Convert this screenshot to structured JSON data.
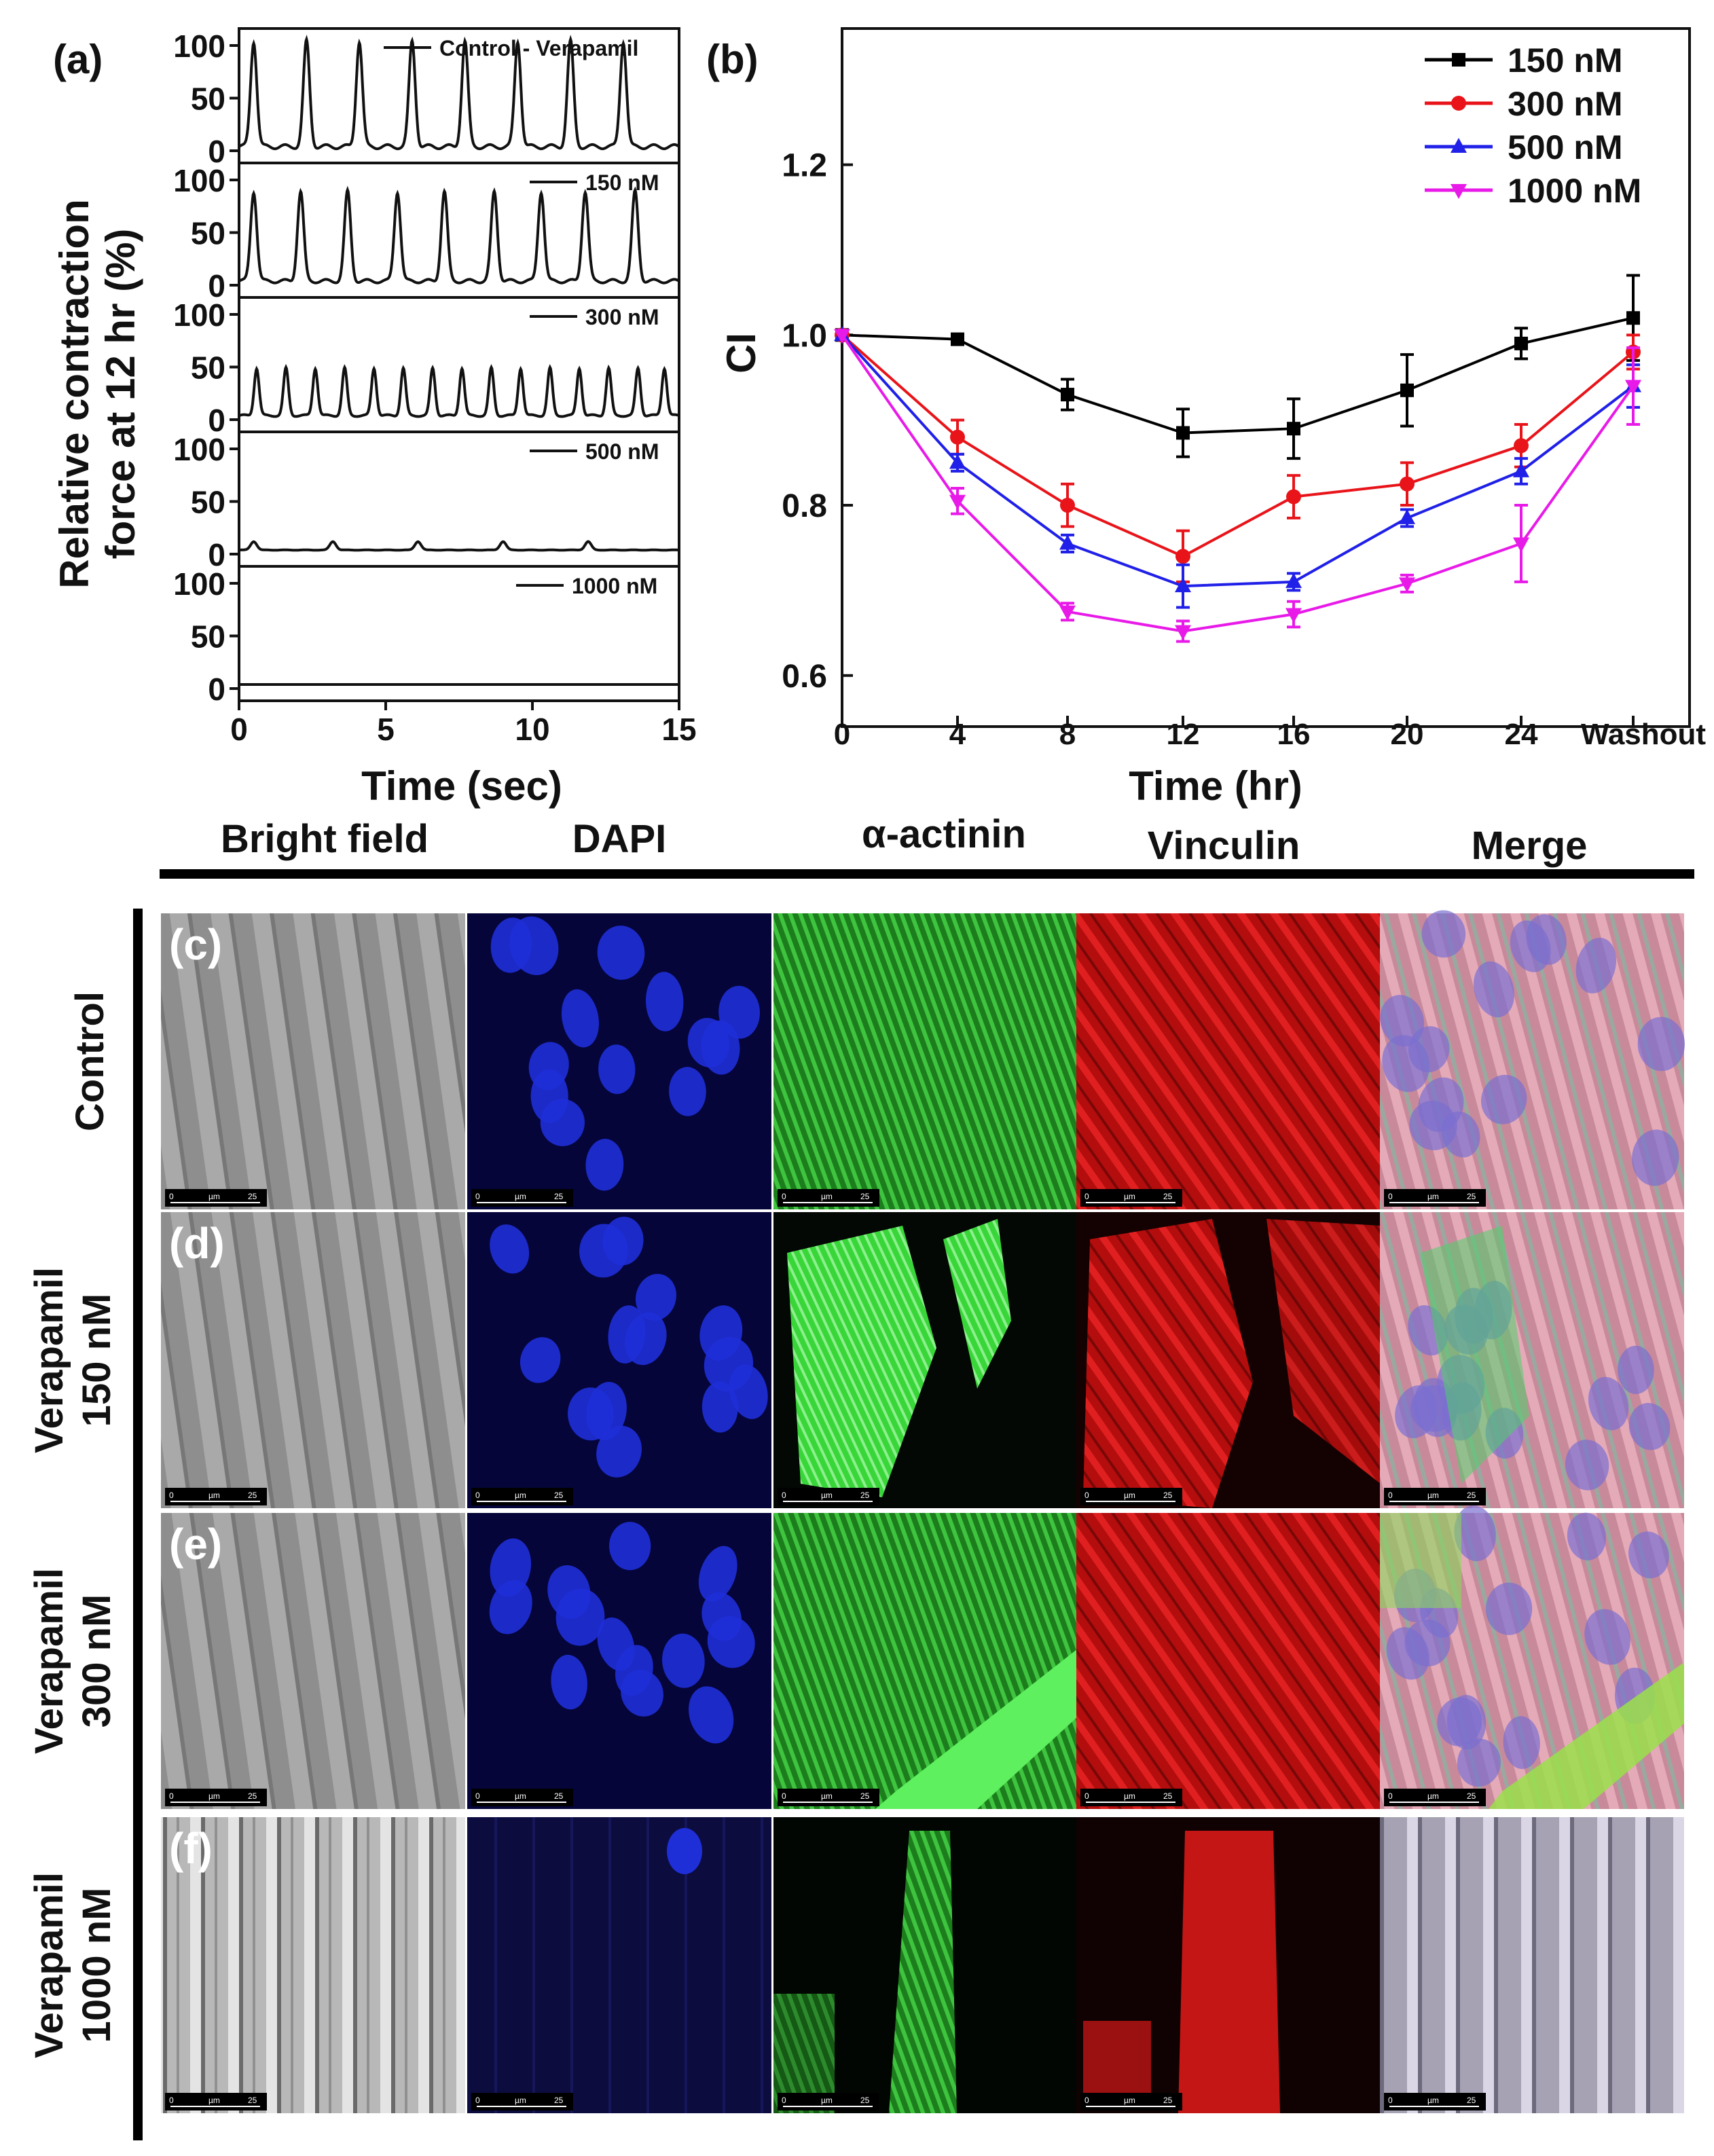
{
  "panel_a": {
    "label": "(a)",
    "ylabel_line1": "Relative contraction",
    "ylabel_line2": "force at 12 hr (%)",
    "xlabel": "Time (sec)",
    "xticks": [
      "0",
      "5",
      "10",
      "15"
    ],
    "strips": [
      {
        "legend": "Control - Verapamil",
        "ticks": [
          "100",
          "50",
          "0"
        ]
      },
      {
        "legend": "150 nM",
        "ticks": [
          "100",
          "50",
          "0"
        ]
      },
      {
        "legend": "300 nM",
        "ticks": [
          "100",
          "50",
          "0"
        ]
      },
      {
        "legend": "500 nM",
        "ticks": [
          "100",
          "50",
          "0"
        ]
      },
      {
        "legend": "1000 nM",
        "ticks": [
          "100",
          "50",
          "0"
        ]
      }
    ]
  },
  "panel_b": {
    "label": "(b)",
    "ylabel": "CI",
    "xlabel": "Time (hr)",
    "xticks": [
      "0",
      "4",
      "8",
      "12",
      "16",
      "20",
      "24",
      "Washout"
    ],
    "yticks": [
      "0.6",
      "0.8",
      "1.0",
      "1.2"
    ]
  },
  "chart_data": [
    {
      "type": "line",
      "panel": "(a)",
      "xlabel": "Time (sec)",
      "ylabel": "Relative contraction force at 12 hr (%)",
      "xlim": [
        0,
        15
      ],
      "ylim": [
        0,
        100
      ],
      "series": [
        {
          "name": "Control - Verapamil",
          "peak_times": [
            0.5,
            2.3,
            4.1,
            5.9,
            7.7,
            9.5,
            11.3,
            13.1
          ],
          "peak_amplitude": 100
        },
        {
          "name": "150 nM",
          "peak_times": [
            0.5,
            2.1,
            3.7,
            5.4,
            7.0,
            8.7,
            10.3,
            11.8,
            13.5
          ],
          "peak_amplitude": 85
        },
        {
          "name": "300 nM",
          "peak_times": [
            0.6,
            1.6,
            2.6,
            3.6,
            4.6,
            5.6,
            6.6,
            7.6,
            8.6,
            9.6,
            10.6,
            11.6,
            12.6,
            13.6,
            14.5
          ],
          "peak_amplitude": 45
        },
        {
          "name": "500 nM",
          "peak_times": [
            0.5,
            3.2,
            6.1,
            9.0,
            11.9
          ],
          "peak_amplitude": 8
        },
        {
          "name": "1000 nM",
          "peak_times": [],
          "peak_amplitude": 0
        }
      ]
    },
    {
      "type": "line",
      "panel": "(b)",
      "xlabel": "Time (hr)",
      "ylabel": "CI",
      "categories": [
        "0",
        "4",
        "8",
        "12",
        "16",
        "20",
        "24",
        "Washout"
      ],
      "ylim": [
        0.54,
        1.36
      ],
      "legend": "top-right",
      "series": [
        {
          "name": "150 nM",
          "color": "#000000",
          "marker": "square",
          "values": [
            1.0,
            0.995,
            0.93,
            0.885,
            0.89,
            0.935,
            0.99,
            1.02
          ],
          "errors": [
            0.0,
            0.005,
            0.018,
            0.028,
            0.035,
            0.042,
            0.018,
            0.05
          ]
        },
        {
          "name": "300 nM",
          "color": "#e8141a",
          "marker": "circle",
          "values": [
            1.0,
            0.88,
            0.8,
            0.74,
            0.81,
            0.825,
            0.87,
            0.98
          ],
          "errors": [
            0.0,
            0.02,
            0.025,
            0.03,
            0.025,
            0.025,
            0.025,
            0.02
          ]
        },
        {
          "name": "500 nM",
          "color": "#2020e8",
          "marker": "triangle-up",
          "values": [
            1.0,
            0.85,
            0.755,
            0.705,
            0.71,
            0.785,
            0.84,
            0.94
          ],
          "errors": [
            0.0,
            0.01,
            0.01,
            0.025,
            0.01,
            0.01,
            0.015,
            0.025
          ]
        },
        {
          "name": "1000 nM",
          "color": "#e81ae8",
          "marker": "triangle-down",
          "values": [
            1.0,
            0.805,
            0.675,
            0.652,
            0.672,
            0.708,
            0.755,
            0.94
          ],
          "errors": [
            0.0,
            0.015,
            0.01,
            0.012,
            0.015,
            0.01,
            0.045,
            0.045
          ]
        }
      ]
    }
  ],
  "micrographs": {
    "columns": [
      "Bright field",
      "DAPI",
      "α-actinin",
      "Vinculin",
      "Merge"
    ],
    "rows": [
      {
        "label": "(c)",
        "name_line1": "Control",
        "name_line2": ""
      },
      {
        "label": "(d)",
        "name_line1": "Verapamil",
        "name_line2": "150 nM"
      },
      {
        "label": "(e)",
        "name_line1": "Verapamil",
        "name_line2": "300 nM"
      },
      {
        "label": "(f)",
        "name_line1": "Verapamil",
        "name_line2": "1000 nM"
      }
    ],
    "scalebar": {
      "zero": "0",
      "unit": "µm",
      "value": "25"
    }
  }
}
